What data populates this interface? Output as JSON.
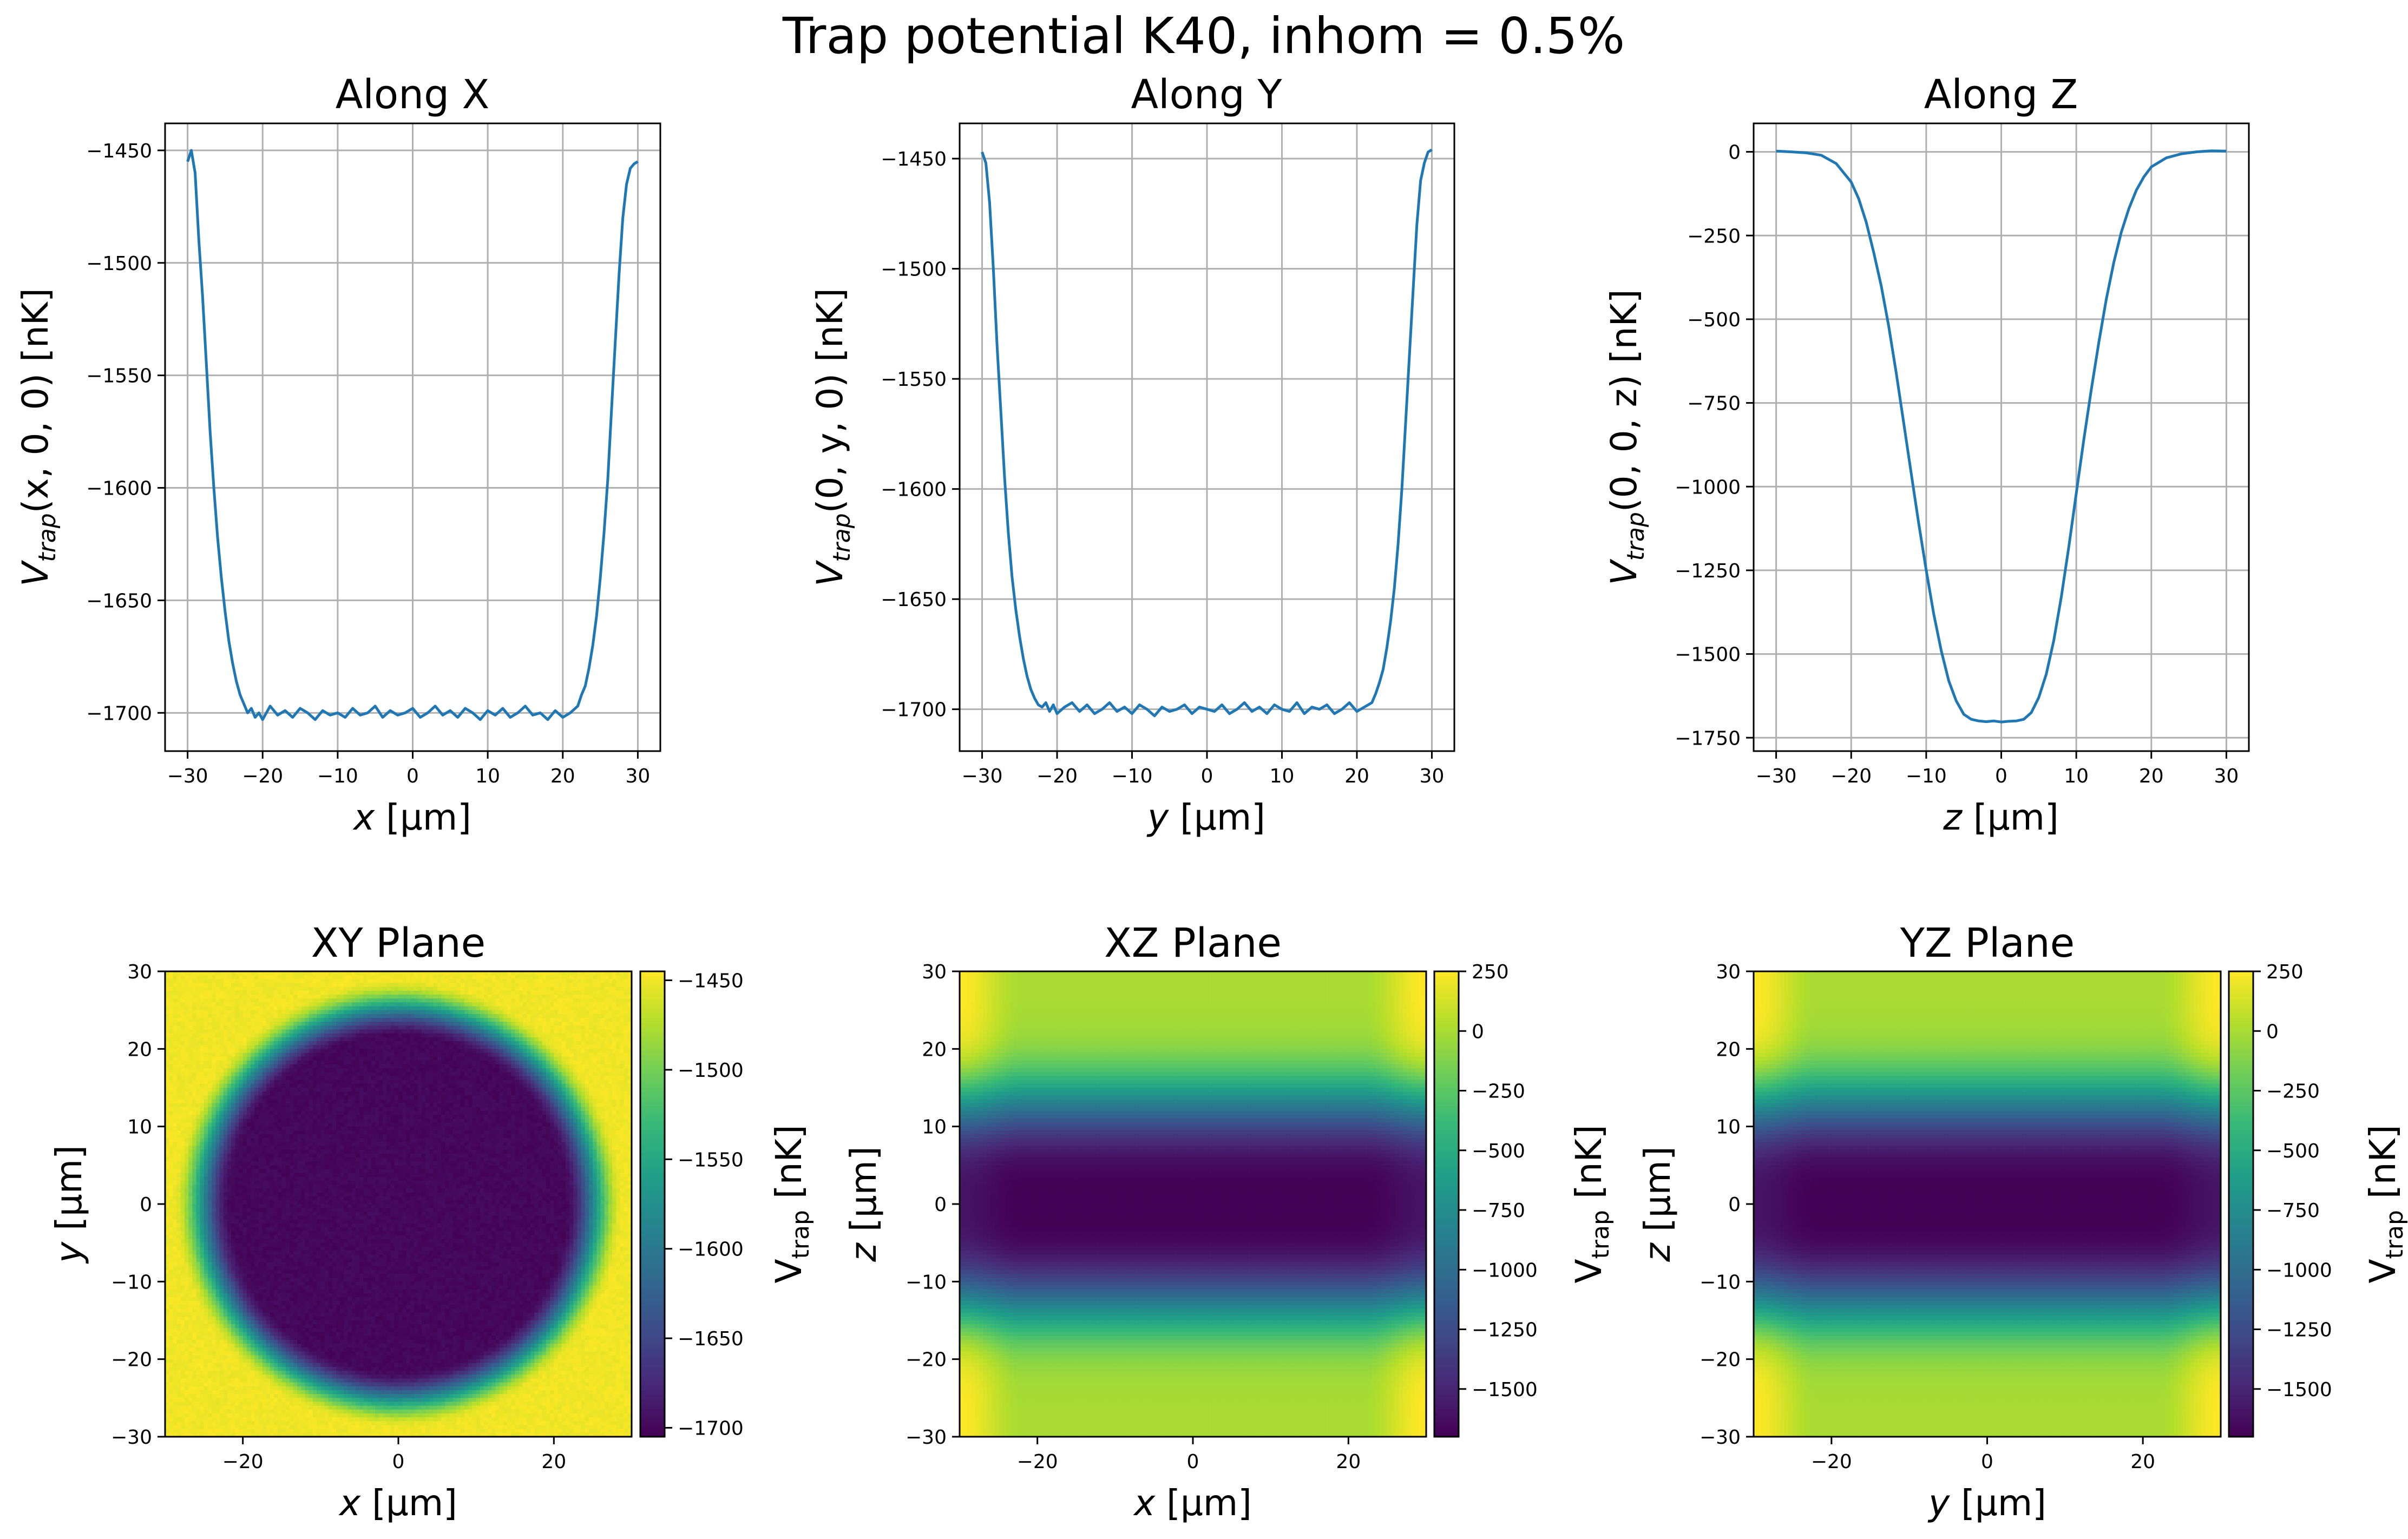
{
  "figure": {
    "title": "Trap potential K40, inhom = 0.5%"
  },
  "colors": {
    "line": "#1f77b4",
    "colormap": "viridis",
    "grid": "#b0b0b0"
  },
  "chart_data": [
    {
      "id": "along-x",
      "type": "line",
      "title": "Along X",
      "xlabel_var": "x",
      "xlabel_unit": " [μm]",
      "ylabel_main": "V",
      "ylabel_sub": "trap",
      "ylabel_args": "(x, 0, 0) [nK]",
      "xlim": [
        -33,
        33
      ],
      "ylim": [
        -1717,
        -1438
      ],
      "xticks": [
        -30,
        -20,
        -10,
        0,
        10,
        20,
        30
      ],
      "yticks": [
        -1450,
        -1500,
        -1550,
        -1600,
        -1650,
        -1700
      ],
      "grid": true,
      "series": [
        {
          "x": [
            -30,
            -29.5,
            -29,
            -28.5,
            -28,
            -27.5,
            -27,
            -26.5,
            -26,
            -25.5,
            -25,
            -24.5,
            -24,
            -23.5,
            -23,
            -22.5,
            -22,
            -21.5,
            -21,
            -20.5,
            -20,
            -19,
            -18,
            -17,
            -16,
            -15,
            -14,
            -13,
            -12,
            -11,
            -10,
            -9,
            -8,
            -7,
            -6,
            -5,
            -4,
            -3,
            -2,
            -1,
            0,
            1,
            2,
            3,
            4,
            5,
            6,
            7,
            8,
            9,
            10,
            11,
            12,
            13,
            14,
            15,
            16,
            17,
            18,
            19,
            20,
            21,
            22,
            22.5,
            23,
            23.5,
            24,
            24.5,
            25,
            25.5,
            26,
            26.5,
            27,
            27.5,
            28,
            28.5,
            29,
            29.5,
            30
          ],
          "y": [
            -1455,
            -1450,
            -1460,
            -1490,
            -1515,
            -1545,
            -1575,
            -1600,
            -1622,
            -1640,
            -1655,
            -1668,
            -1678,
            -1686,
            -1692,
            -1696,
            -1700,
            -1698,
            -1702,
            -1700,
            -1703,
            -1697,
            -1701,
            -1699,
            -1702,
            -1698,
            -1700,
            -1703,
            -1699,
            -1701,
            -1700,
            -1702,
            -1698,
            -1701,
            -1700,
            -1697,
            -1702,
            -1699,
            -1701,
            -1700,
            -1698,
            -1702,
            -1700,
            -1697,
            -1701,
            -1699,
            -1702,
            -1698,
            -1700,
            -1703,
            -1699,
            -1701,
            -1698,
            -1702,
            -1700,
            -1697,
            -1701,
            -1700,
            -1703,
            -1699,
            -1702,
            -1700,
            -1697,
            -1692,
            -1688,
            -1680,
            -1670,
            -1657,
            -1640,
            -1620,
            -1596,
            -1565,
            -1535,
            -1505,
            -1480,
            -1465,
            -1458,
            -1456,
            -1455
          ]
        }
      ]
    },
    {
      "id": "along-y",
      "type": "line",
      "title": "Along Y",
      "xlabel_var": "y",
      "xlabel_unit": " [μm]",
      "ylabel_main": "V",
      "ylabel_sub": "trap",
      "ylabel_args": "(0, y, 0) [nK]",
      "xlim": [
        -33,
        33
      ],
      "ylim": [
        -1719,
        -1434
      ],
      "xticks": [
        -30,
        -20,
        -10,
        0,
        10,
        20,
        30
      ],
      "yticks": [
        -1450,
        -1500,
        -1550,
        -1600,
        -1650,
        -1700
      ],
      "grid": true,
      "series": [
        {
          "x": [
            -30,
            -29.5,
            -29,
            -28.5,
            -28,
            -27.5,
            -27,
            -26.5,
            -26,
            -25.5,
            -25,
            -24.5,
            -24,
            -23.5,
            -23,
            -22.5,
            -22,
            -21.5,
            -21,
            -20.5,
            -20,
            -19,
            -18,
            -17,
            -16,
            -15,
            -14,
            -13,
            -12,
            -11,
            -10,
            -9,
            -8,
            -7,
            -6,
            -5,
            -4,
            -3,
            -2,
            -1,
            0,
            1,
            2,
            3,
            4,
            5,
            6,
            7,
            8,
            9,
            10,
            11,
            12,
            13,
            14,
            15,
            16,
            17,
            18,
            19,
            20,
            21,
            22,
            22.5,
            23,
            23.5,
            24,
            24.5,
            25,
            25.5,
            26,
            26.5,
            27,
            27.5,
            28,
            28.5,
            29,
            29.5,
            30
          ],
          "y": [
            -1447,
            -1452,
            -1470,
            -1500,
            -1535,
            -1565,
            -1595,
            -1620,
            -1640,
            -1655,
            -1667,
            -1677,
            -1685,
            -1691,
            -1695,
            -1698,
            -1699,
            -1697,
            -1701,
            -1698,
            -1702,
            -1699,
            -1697,
            -1701,
            -1698,
            -1702,
            -1700,
            -1697,
            -1701,
            -1699,
            -1702,
            -1698,
            -1700,
            -1703,
            -1699,
            -1701,
            -1700,
            -1698,
            -1702,
            -1699,
            -1700,
            -1701,
            -1698,
            -1702,
            -1700,
            -1697,
            -1701,
            -1699,
            -1702,
            -1698,
            -1700,
            -1701,
            -1697,
            -1702,
            -1699,
            -1700,
            -1698,
            -1702,
            -1700,
            -1697,
            -1701,
            -1699,
            -1697,
            -1693,
            -1688,
            -1682,
            -1672,
            -1660,
            -1645,
            -1625,
            -1600,
            -1570,
            -1540,
            -1510,
            -1480,
            -1460,
            -1452,
            -1447,
            -1446
          ]
        }
      ]
    },
    {
      "id": "along-z",
      "type": "line",
      "title": "Along Z",
      "xlabel_var": "z",
      "xlabel_unit": " [μm]",
      "ylabel_main": "V",
      "ylabel_sub": "trap",
      "ylabel_args": "(0, 0, z) [nK]",
      "xlim": [
        -33,
        33
      ],
      "ylim": [
        -1790,
        85
      ],
      "xticks": [
        -30,
        -20,
        -10,
        0,
        10,
        20,
        30
      ],
      "yticks": [
        0,
        -250,
        -500,
        -750,
        -1000,
        -1250,
        -1500,
        -1750
      ],
      "grid": true,
      "series": [
        {
          "x": [
            -30,
            -28,
            -26,
            -24,
            -22,
            -20,
            -19,
            -18,
            -17,
            -16,
            -15,
            -14,
            -13,
            -12,
            -11,
            -10,
            -9,
            -8,
            -7,
            -6,
            -5,
            -4,
            -3,
            -2,
            -1,
            0,
            1,
            2,
            3,
            4,
            5,
            6,
            7,
            8,
            9,
            10,
            11,
            12,
            13,
            14,
            15,
            16,
            17,
            18,
            19,
            20,
            22,
            24,
            26,
            28,
            30
          ],
          "y": [
            2,
            0,
            -3,
            -10,
            -35,
            -90,
            -140,
            -210,
            -300,
            -400,
            -520,
            -660,
            -810,
            -960,
            -1110,
            -1250,
            -1380,
            -1490,
            -1580,
            -1640,
            -1680,
            -1695,
            -1700,
            -1702,
            -1700,
            -1703,
            -1701,
            -1700,
            -1695,
            -1675,
            -1630,
            -1560,
            -1460,
            -1330,
            -1180,
            -1020,
            -860,
            -710,
            -570,
            -440,
            -330,
            -240,
            -170,
            -115,
            -75,
            -45,
            -18,
            -6,
            0,
            3,
            2
          ]
        }
      ]
    },
    {
      "id": "xy-plane",
      "type": "heatmap",
      "title": "XY Plane",
      "xlabel_var": "x",
      "xlabel_unit": " [μm]",
      "ylabel_var": "y",
      "ylabel_unit": " [μm]",
      "xlim": [
        -30,
        30
      ],
      "ylim": [
        -30,
        30
      ],
      "xticks": [
        -20,
        0,
        20
      ],
      "yticks": [
        30,
        20,
        10,
        0,
        -10,
        -20,
        -30
      ],
      "colorbar_label_main": "V",
      "colorbar_label_sub": "trap",
      "colorbar_label_unit": " [nK]",
      "clim": [
        -1705,
        -1445
      ],
      "colorbar_ticks": [
        -1450,
        -1500,
        -1550,
        -1600,
        -1650,
        -1700
      ],
      "description_model": "flat bottom -1700 inside radius ~22 um, rising to -1450 outside radius ~29 um"
    },
    {
      "id": "xz-plane",
      "type": "heatmap",
      "title": "XZ Plane",
      "xlabel_var": "x",
      "xlabel_unit": " [μm]",
      "ylabel_var": "z",
      "ylabel_unit": " [μm]",
      "xlim": [
        -30,
        30
      ],
      "ylim": [
        -30,
        30
      ],
      "xticks": [
        -20,
        0,
        20
      ],
      "yticks": [
        30,
        20,
        10,
        0,
        -10,
        -20,
        -30
      ],
      "colorbar_label_main": "V",
      "colorbar_label_sub": "trap",
      "colorbar_label_unit": " [nK]",
      "clim": [
        -1700,
        250
      ],
      "colorbar_ticks": [
        250,
        0,
        -250,
        -500,
        -750,
        -1000,
        -1250,
        -1500
      ]
    },
    {
      "id": "yz-plane",
      "type": "heatmap",
      "title": "YZ Plane",
      "xlabel_var": "y",
      "xlabel_unit": " [μm]",
      "ylabel_var": "z",
      "ylabel_unit": " [μm]",
      "xlim": [
        -30,
        30
      ],
      "ylim": [
        -30,
        30
      ],
      "xticks": [
        -20,
        0,
        20
      ],
      "yticks": [
        30,
        20,
        10,
        0,
        -10,
        -20,
        -30
      ],
      "colorbar_label_main": "V",
      "colorbar_label_sub": "trap",
      "colorbar_label_unit": " [nK]",
      "clim": [
        -1700,
        250
      ],
      "colorbar_ticks": [
        250,
        0,
        -250,
        -500,
        -750,
        -1000,
        -1250,
        -1500
      ]
    }
  ]
}
